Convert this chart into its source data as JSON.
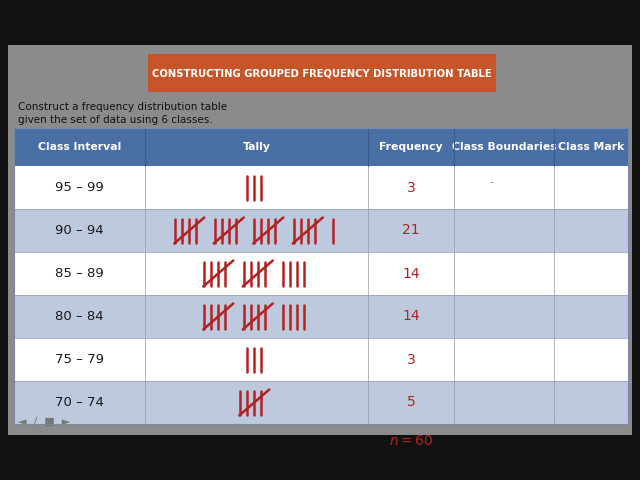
{
  "title": "CONSTRUCTING GROUPED FREQUENCY DISTRIBUTION TABLE",
  "title_bg": "#C8542A",
  "title_color": "#FFFFFF",
  "subtitle_line1": "Construct a frequency distribution table",
  "subtitle_line2": "given the set of data using 6 classes.",
  "panel_bg": "#8A8A8A",
  "outer_bg": "#111111",
  "header": [
    "Class Interval",
    "Tally",
    "Frequency",
    "Class Boundaries",
    "Class Mark"
  ],
  "header_bg": "#4A6FA5",
  "header_color": "#FFFFFF",
  "class_intervals": [
    "95 – 99",
    "90 – 94",
    "85 – 89",
    "80 – 84",
    "75 – 79",
    "70 – 74"
  ],
  "frequencies": [
    "3",
    "21",
    "14",
    "14",
    "3",
    "5"
  ],
  "tally_counts": [
    3,
    21,
    14,
    14,
    3,
    5
  ],
  "row_colors": [
    "#FFFFFF",
    "#BDC9DC",
    "#FFFFFF",
    "#BDC9DC",
    "#FFFFFF",
    "#BDC9DC"
  ],
  "tally_color": "#B22222",
  "freq_color": "#B22222",
  "interval_color": "#1A1A1A",
  "n_text": "n = 60",
  "n_color": "#B22222",
  "cursor_symbol": "˙",
  "nav_text": "◄  /  ■  ►"
}
